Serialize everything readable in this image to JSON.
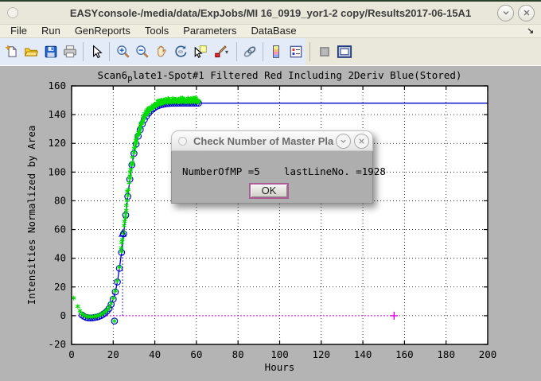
{
  "window": {
    "title": "EASYconsole-/media/data/ExpJobs/MI 16_0919_yor1-2 copy/Results2017-06-15A1",
    "controls": [
      "menu-circle",
      "rollup",
      "close"
    ]
  },
  "menu": {
    "items": [
      "File",
      "Run",
      "GenReports",
      "Tools",
      "Parameters",
      "DataBase"
    ],
    "overflow_icon": "tearoff-arrow"
  },
  "toolbar": {
    "icons": [
      "new-file",
      "open-file",
      "save-figure",
      "print-figure",
      "pointer",
      "zoom-in",
      "zoom-out",
      "pan-hand",
      "rotate-3d",
      "data-cursor",
      "brush-data",
      "link-plots",
      "insert-colorbar",
      "insert-legend",
      "hide-plot-tools",
      "show-plot-tools"
    ]
  },
  "dialog": {
    "title": "Check Number of Master Pla",
    "message": "NumberOfMP =5    lastLineNo. =1928",
    "ok_label": "OK"
  },
  "chart_data": {
    "type": "line",
    "title_parts": {
      "pre": "Scan6",
      "sub": "p",
      "post": "late1-Spot#1 Filtered Red Including 2Deriv Blue(Stored)"
    },
    "title_text": "Scan6_plate1-Spot#1 Filtered Red Including 2Deriv Blue(Stored)",
    "xlabel": "Hours",
    "ylabel": "Intensities Normalized by Area",
    "xlim": [
      0,
      200
    ],
    "ylim": [
      -20,
      160
    ],
    "xticks": [
      0,
      20,
      40,
      60,
      80,
      100,
      120,
      140,
      160,
      180,
      200
    ],
    "yticks": [
      -20,
      0,
      20,
      40,
      60,
      80,
      100,
      120,
      140,
      160
    ],
    "grid": "dotted",
    "colors": {
      "measured": "#00dd00",
      "fit": "#0000cc",
      "baseline": "#e000e0"
    },
    "series": [
      {
        "name": "measured-green-asterisks",
        "marker": "asterisk",
        "color": "#00dd00",
        "early_points": [
          [
            1,
            12.3
          ],
          [
            3,
            6.5
          ],
          [
            4,
            3.3
          ]
        ],
        "band": {
          "x_start": 24,
          "x_end": 61,
          "step": 0.3,
          "offset": 2.2,
          "jitter": 1.4
        }
      },
      {
        "name": "fit-curve-blue-circles",
        "marker": "circle",
        "color": "#0000cc",
        "line": true,
        "points": [
          [
            5,
            0.5
          ],
          [
            6,
            -0.5
          ],
          [
            7,
            -1.2
          ],
          [
            8,
            -1.5
          ],
          [
            9,
            -1.6
          ],
          [
            10,
            -1.5
          ],
          [
            11,
            -1.3
          ],
          [
            12,
            -1
          ],
          [
            13,
            -0.6
          ],
          [
            14,
            0
          ],
          [
            15,
            0.8
          ],
          [
            16,
            1.8
          ],
          [
            17,
            3.2
          ],
          [
            18,
            5
          ],
          [
            19,
            7.8
          ],
          [
            20,
            11.5
          ],
          [
            21,
            16.5
          ],
          [
            22,
            23.5
          ],
          [
            23,
            33
          ],
          [
            24,
            44
          ],
          [
            25,
            57
          ],
          [
            26,
            70
          ],
          [
            27,
            83
          ],
          [
            28,
            95
          ],
          [
            29,
            105
          ],
          [
            30,
            113
          ],
          [
            31,
            119.5
          ],
          [
            32,
            125
          ],
          [
            33,
            129.5
          ],
          [
            34,
            133.5
          ],
          [
            35,
            136.5
          ],
          [
            36,
            139
          ],
          [
            37,
            141
          ],
          [
            38,
            142.7
          ],
          [
            39,
            144
          ],
          [
            40,
            145
          ],
          [
            41,
            145.8
          ],
          [
            42,
            146.4
          ],
          [
            43,
            146.9
          ],
          [
            44,
            147.2
          ],
          [
            45,
            147.5
          ],
          [
            46,
            147.7
          ],
          [
            47,
            147.8
          ],
          [
            48,
            147.9
          ],
          [
            49,
            148
          ],
          [
            50,
            148
          ],
          [
            51,
            148
          ],
          [
            52,
            148
          ],
          [
            53,
            148
          ],
          [
            54,
            148
          ],
          [
            55,
            148
          ],
          [
            56,
            148
          ],
          [
            57,
            148
          ],
          [
            58,
            148
          ],
          [
            59,
            148
          ],
          [
            60,
            148
          ],
          [
            61,
            148
          ]
        ],
        "tail": [
          [
            61,
            148
          ],
          [
            200,
            148
          ]
        ]
      },
      {
        "name": "outlier-point",
        "marker": "circle+asterisk",
        "color": "#0000cc",
        "points": [
          [
            20.6,
            -3.7
          ]
        ]
      },
      {
        "name": "deriv-trigger-triangle",
        "marker": "triangle",
        "color": "#0000cc",
        "points": [
          [
            24.5,
            57
          ]
        ],
        "drop_line": {
          "x": 24.5,
          "y_from": 0,
          "y_to": 57,
          "style": "dotted"
        }
      },
      {
        "name": "zero-baseline",
        "marker": "plus",
        "color": "#e000e0",
        "line_y": 0,
        "x_from": 0,
        "x_to": 155,
        "style": "dotted",
        "points": [
          [
            155,
            0
          ]
        ]
      }
    ]
  }
}
